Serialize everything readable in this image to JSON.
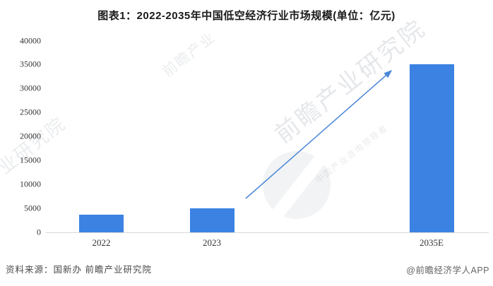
{
  "title": "图表1：2022-2035年中国低空经济行业市场规模(单位：亿元)",
  "footer": {
    "source": "资料来源：国新办 前瞻产业研究院",
    "credit": "@前瞻经济学人APP"
  },
  "watermark": {
    "brand": "前瞻产业研究院",
    "tagline": "中国产业咨询领导者",
    "brand_short": "前瞻产业",
    "left_fragment": "产业研究院"
  },
  "colors": {
    "bar": "#3B82E2",
    "arrow": "#4A86D9",
    "axis_line": "#D9D9D9",
    "axis_text": "#333333",
    "title_text": "#1A1A1A",
    "footer_text": "#4A4A4A"
  },
  "chart_data": {
    "type": "bar",
    "title": "图表1：2022-2035年中国低空经济行业市场规模(单位：亿元)",
    "unit": "亿元",
    "categories": [
      "2022",
      "2023",
      "2035E"
    ],
    "values": [
      3700,
      5000,
      35000
    ],
    "xlabel": "",
    "ylabel": "",
    "ylim": [
      0,
      40000
    ],
    "yticks": [
      0,
      5000,
      10000,
      15000,
      20000,
      25000,
      30000,
      35000,
      40000
    ],
    "grid": false,
    "legend": false,
    "annotations": [
      {
        "type": "arrow",
        "from_category": "2023",
        "to_category": "2035E",
        "meaning": "growth trend toward 2035E"
      }
    ]
  }
}
